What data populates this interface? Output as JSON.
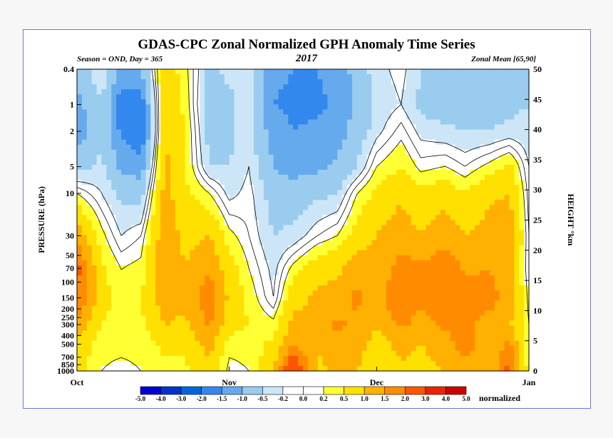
{
  "chart_data": {
    "type": "heatmap",
    "title": "GDAS-CPC Zonal Normalized GPH Anomaly Time Series",
    "subtitle_left": "Season = OND, Day = 365",
    "subtitle_center": "2017",
    "subtitle_right": "Zonal Mean [65,90]",
    "ylabel": "PRESSURE (hPa)",
    "ylabel_right": "HEIGHT °km",
    "colorbar_label": "normalized",
    "x_ticks": [
      {
        "label": "Oct",
        "day": 0
      },
      {
        "label": "Nov",
        "day": 31
      },
      {
        "label": "Dec",
        "day": 61
      },
      {
        "label": "Jan",
        "day": 92
      }
    ],
    "xlim": [
      0,
      92
    ],
    "y_ticks": [
      "0.4",
      "1",
      "2",
      "5",
      "10",
      "30",
      "50",
      "70",
      "100",
      "150",
      "200",
      "250",
      "300",
      "400",
      "500",
      "700",
      "850",
      "1000"
    ],
    "y_values": [
      0.4,
      1,
      2,
      5,
      10,
      30,
      50,
      70,
      100,
      150,
      200,
      250,
      300,
      400,
      500,
      700,
      850,
      1000
    ],
    "ylim": [
      1000,
      0.4
    ],
    "height_ticks": [
      "0",
      "5",
      "10",
      "15",
      "20",
      "25",
      "30",
      "35",
      "40",
      "45",
      "50"
    ],
    "height_values": [
      0,
      5,
      10,
      15,
      20,
      25,
      30,
      35,
      40,
      45,
      50
    ],
    "levels": [
      "-5.0",
      "-4.0",
      "-3.0",
      "-2.0",
      "-1.5",
      "-1.0",
      "-0.5",
      "-0.2",
      "0.0",
      "0.2",
      "0.5",
      "1.0",
      "1.5",
      "2.0",
      "3.0",
      "4.0",
      "5.0"
    ],
    "colors": [
      "#0000cc",
      "#0033cc",
      "#0066dd",
      "#3388ee",
      "#66aaee",
      "#99ccee",
      "#cce6f7",
      "#ffffff",
      "#ffffff",
      "#ffff33",
      "#ffe000",
      "#ffb000",
      "#ff8c00",
      "#ff5500",
      "#ee2200",
      "#cc0000"
    ],
    "anomaly_grid": {
      "days": [
        0,
        5,
        9,
        13,
        18,
        22,
        27,
        31,
        35,
        40,
        44,
        49,
        53,
        57,
        61,
        66,
        70,
        75,
        79,
        84,
        88,
        92
      ],
      "pressures_hpa": [
        0.4,
        1,
        2,
        5,
        10,
        30,
        70,
        150,
        300,
        500,
        1000
      ],
      "values": [
        [
          -0.8,
          -0.2,
          -1.2,
          -1.0,
          0.8,
          0.3,
          -0.6,
          -0.4,
          -0.4,
          -1.4,
          -1.5,
          -1.5,
          -1.3,
          -0.8,
          -0.3,
          -0.1,
          -0.5,
          -0.7,
          -0.6,
          -0.6,
          -0.6,
          -0.5
        ],
        [
          -1.2,
          -0.5,
          -1.8,
          -1.9,
          1.0,
          0.4,
          -0.8,
          -0.6,
          -0.3,
          -1.5,
          -1.6,
          -1.6,
          -1.4,
          -0.9,
          -0.4,
          -0.2,
          -0.6,
          -0.8,
          -0.7,
          -0.7,
          -0.6,
          -0.5
        ],
        [
          -1.3,
          -0.6,
          -1.6,
          -2.0,
          1.0,
          0.5,
          -0.7,
          -0.6,
          -0.3,
          -1.3,
          -1.5,
          -1.4,
          -1.2,
          -0.8,
          -0.3,
          0.1,
          -0.3,
          -0.4,
          -0.5,
          -0.5,
          -0.4,
          -0.4
        ],
        [
          -0.7,
          -0.4,
          -1.1,
          -1.3,
          1.1,
          0.5,
          -0.5,
          -0.5,
          -0.2,
          -1.0,
          -1.2,
          -1.1,
          -0.9,
          -0.5,
          0.2,
          0.5,
          0.1,
          0.2,
          0.0,
          0.3,
          0.6,
          -0.2
        ],
        [
          0.2,
          -0.2,
          -0.6,
          -0.7,
          1.2,
          0.6,
          0.2,
          -0.3,
          -0.1,
          -0.7,
          -0.8,
          -0.6,
          -0.5,
          0.2,
          0.6,
          0.9,
          0.6,
          0.8,
          0.5,
          0.9,
          1.0,
          -0.1
        ],
        [
          1.3,
          0.3,
          -0.2,
          0.0,
          1.4,
          0.8,
          1.0,
          0.3,
          0.0,
          -0.5,
          -0.4,
          0.0,
          0.2,
          0.7,
          1.0,
          1.3,
          1.0,
          1.3,
          1.0,
          1.2,
          1.4,
          0.0
        ],
        [
          2.2,
          0.6,
          0.2,
          0.3,
          1.5,
          1.0,
          1.5,
          0.7,
          0.2,
          -0.3,
          0.3,
          0.8,
          0.9,
          1.3,
          1.2,
          1.7,
          1.6,
          1.9,
          1.4,
          1.5,
          1.2,
          0.0
        ],
        [
          2.0,
          0.7,
          0.3,
          0.5,
          1.3,
          1.1,
          1.8,
          0.9,
          0.4,
          -0.2,
          0.8,
          1.1,
          1.2,
          1.6,
          1.3,
          1.9,
          1.6,
          2.0,
          1.8,
          1.7,
          1.3,
          0.1
        ],
        [
          1.4,
          0.5,
          0.4,
          0.4,
          1.0,
          0.9,
          1.6,
          0.7,
          0.5,
          0.3,
          1.2,
          1.1,
          1.6,
          1.4,
          1.1,
          1.6,
          1.3,
          1.6,
          1.6,
          1.3,
          1.1,
          0.2
        ],
        [
          0.9,
          0.3,
          0.3,
          0.3,
          0.6,
          0.6,
          1.2,
          0.3,
          0.3,
          0.6,
          1.5,
          1.0,
          1.4,
          1.3,
          0.7,
          1.2,
          1.0,
          1.3,
          1.8,
          1.2,
          1.6,
          0.2
        ],
        [
          0.6,
          0.2,
          0.1,
          0.2,
          0.4,
          0.4,
          0.8,
          0.1,
          0.2,
          0.9,
          2.8,
          0.9,
          1.1,
          1.0,
          0.5,
          0.9,
          0.8,
          1.0,
          1.2,
          1.0,
          2.2,
          0.3
        ]
      ]
    }
  }
}
